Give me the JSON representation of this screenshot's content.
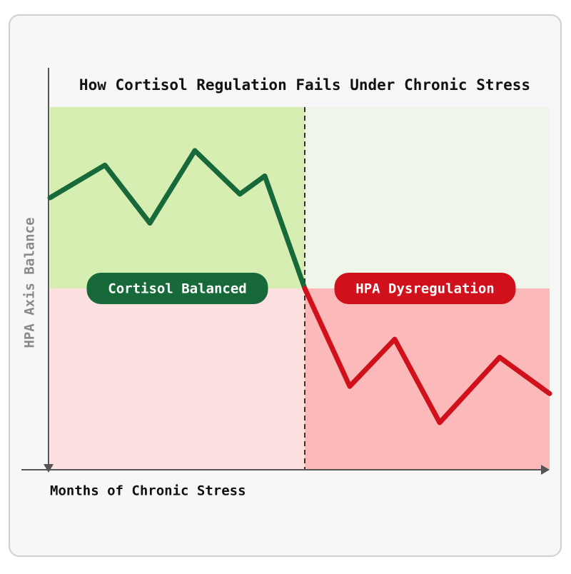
{
  "chart_data": {
    "type": "line",
    "title": "How Cortisol Regulation Fails Under Chronic Stress",
    "x_label": "Months of Chronic Stress",
    "y_label": "HPA Axis Balance",
    "xlim": [
      0,
      100
    ],
    "ylim": [
      0,
      100
    ],
    "vline": 51,
    "hline": 50,
    "series": [
      {
        "name": "Cortisol Balanced",
        "color": "#17693a",
        "x": [
          0,
          11,
          20,
          29,
          38,
          43,
          51
        ],
        "values": [
          75,
          84,
          68,
          88,
          76,
          81,
          50
        ]
      },
      {
        "name": "HPA Dysregulation",
        "color": "#d0111b",
        "x": [
          51,
          60,
          69,
          78,
          90,
          100
        ],
        "values": [
          50,
          23,
          36,
          13,
          31,
          21
        ]
      }
    ]
  }
}
